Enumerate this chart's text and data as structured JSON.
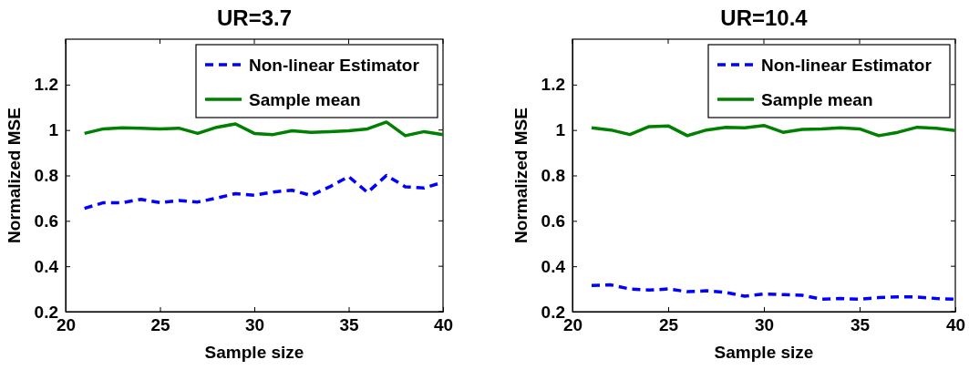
{
  "chart_data": [
    {
      "type": "line",
      "title": "UR=3.7",
      "xlabel": "Sample size",
      "ylabel": "Normalized MSE",
      "x": [
        21,
        22,
        23,
        24,
        25,
        26,
        27,
        28,
        29,
        30,
        31,
        32,
        33,
        34,
        35,
        36,
        37,
        38,
        39,
        40
      ],
      "xlim": [
        20,
        40
      ],
      "xticks": [
        20,
        25,
        30,
        35,
        40
      ],
      "ylim": [
        0.2,
        1.4
      ],
      "yticks": [
        0.2,
        0.4,
        0.6,
        0.8,
        1,
        1.2
      ],
      "legend": "top right",
      "grid": false,
      "series": [
        {
          "name": "Non-linear Estimator",
          "color": "#0000ff",
          "line_style": "dashed",
          "values": [
            0.655,
            0.68,
            0.68,
            0.695,
            0.68,
            0.69,
            0.683,
            0.7,
            0.72,
            0.713,
            0.727,
            0.735,
            0.712,
            0.75,
            0.795,
            0.725,
            0.8,
            0.75,
            0.745,
            0.77
          ]
        },
        {
          "name": "Sample mean",
          "color": "#008000",
          "line_style": "solid",
          "values": [
            0.985,
            1.005,
            1.01,
            1.008,
            1.005,
            1.008,
            0.985,
            1.012,
            1.027,
            0.985,
            0.98,
            0.997,
            0.99,
            0.993,
            0.997,
            1.005,
            1.035,
            0.975,
            0.993,
            0.98
          ]
        }
      ]
    },
    {
      "type": "line",
      "title": "UR=10.4",
      "xlabel": "Sample size",
      "ylabel": "Normalized MSE",
      "x": [
        21,
        22,
        23,
        24,
        25,
        26,
        27,
        28,
        29,
        30,
        31,
        32,
        33,
        34,
        35,
        36,
        37,
        38,
        39,
        40
      ],
      "xlim": [
        20,
        40
      ],
      "xticks": [
        20,
        25,
        30,
        35,
        40
      ],
      "ylim": [
        0.2,
        1.4
      ],
      "yticks": [
        0.2,
        0.4,
        0.6,
        0.8,
        1,
        1.2
      ],
      "legend": "top right",
      "grid": false,
      "series": [
        {
          "name": "Non-linear Estimator",
          "color": "#0000ff",
          "line_style": "dashed",
          "values": [
            0.315,
            0.318,
            0.3,
            0.295,
            0.3,
            0.288,
            0.292,
            0.285,
            0.268,
            0.278,
            0.275,
            0.272,
            0.255,
            0.258,
            0.255,
            0.262,
            0.265,
            0.265,
            0.258,
            0.255
          ]
        },
        {
          "name": "Sample mean",
          "color": "#008000",
          "line_style": "solid",
          "values": [
            1.01,
            1.0,
            0.98,
            1.015,
            1.018,
            0.975,
            1.0,
            1.012,
            1.01,
            1.02,
            0.99,
            1.003,
            1.005,
            1.01,
            1.005,
            0.975,
            0.99,
            1.012,
            1.008,
            0.998
          ]
        }
      ]
    }
  ]
}
